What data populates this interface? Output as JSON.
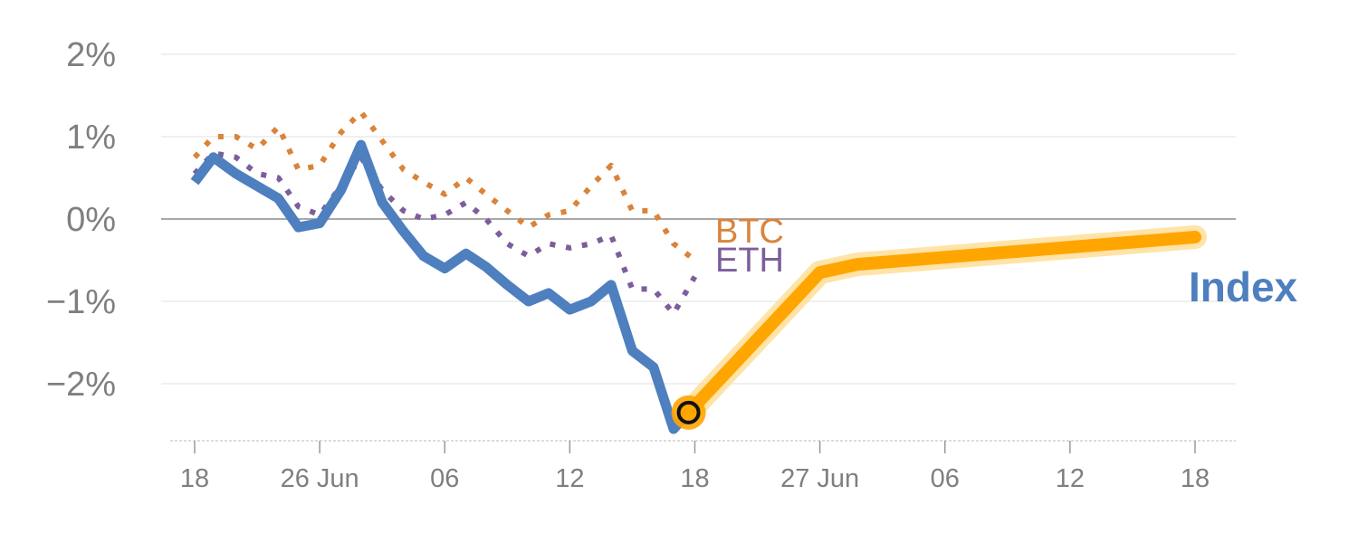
{
  "chart_data": {
    "type": "line",
    "title": "",
    "xlabel": "",
    "ylabel": "",
    "x_tick_labels": [
      "18",
      "26 Jun",
      "06",
      "12",
      "18",
      "27 Jun",
      "06",
      "12",
      "18"
    ],
    "y_tick_labels": [
      "2%",
      "1%",
      "0%",
      "−1%",
      "−2%"
    ],
    "y_ticks": [
      2,
      1,
      0,
      -1,
      -2
    ],
    "ylim": [
      -2.7,
      2.1
    ],
    "x_range": [
      -0.1,
      8.1
    ],
    "series": [
      {
        "name": "BTC",
        "color": "#d9843b",
        "style": "dotted",
        "x": [
          0,
          0.15,
          0.33,
          0.5,
          0.67,
          0.83,
          1.0,
          1.17,
          1.33,
          1.5,
          1.67,
          1.83,
          2.0,
          2.17,
          2.33,
          2.5,
          2.67,
          2.83,
          3.0,
          3.17,
          3.33,
          3.5,
          3.67,
          3.83,
          4.0
        ],
        "values": [
          0.75,
          1.0,
          1.0,
          0.85,
          1.12,
          0.6,
          0.65,
          1.05,
          1.3,
          0.95,
          0.6,
          0.45,
          0.3,
          0.5,
          0.3,
          0.1,
          -0.1,
          0.05,
          0.1,
          0.4,
          0.65,
          0.1,
          0.1,
          -0.3,
          -0.5
        ]
      },
      {
        "name": "ETH",
        "color": "#7c5e9c",
        "style": "dotted",
        "x": [
          0,
          0.15,
          0.33,
          0.5,
          0.67,
          0.83,
          1.0,
          1.17,
          1.33,
          1.5,
          1.67,
          1.83,
          2.0,
          2.17,
          2.33,
          2.5,
          2.67,
          2.83,
          3.0,
          3.17,
          3.33,
          3.5,
          3.67,
          3.83,
          4.0
        ],
        "values": [
          0.55,
          0.8,
          0.75,
          0.55,
          0.5,
          0.15,
          0.05,
          0.4,
          0.75,
          0.35,
          0.1,
          0.0,
          0.05,
          0.2,
          0.0,
          -0.3,
          -0.45,
          -0.3,
          -0.35,
          -0.3,
          -0.2,
          -0.85,
          -0.85,
          -1.15,
          -0.7
        ]
      },
      {
        "name": "Index",
        "color": "#4e7fbf",
        "style": "solid",
        "x": [
          0,
          0.15,
          0.33,
          0.5,
          0.67,
          0.83,
          1.0,
          1.17,
          1.33,
          1.5,
          1.67,
          1.83,
          2.0,
          2.17,
          2.33,
          2.5,
          2.67,
          2.83,
          3.0,
          3.17,
          3.33,
          3.5,
          3.67,
          3.83,
          3.95
        ],
        "values": [
          0.45,
          0.75,
          0.55,
          0.4,
          0.25,
          -0.1,
          -0.05,
          0.35,
          0.9,
          0.2,
          -0.15,
          -0.45,
          -0.6,
          -0.42,
          -0.58,
          -0.8,
          -1.0,
          -0.9,
          -1.1,
          -1.0,
          -0.8,
          -1.6,
          -1.8,
          -2.55,
          -2.35
        ]
      }
    ],
    "forecast": {
      "name": "Index",
      "color": "#ffa500",
      "x": [
        3.95,
        5.0,
        5.3,
        8.0
      ],
      "values": [
        -2.35,
        -0.65,
        -0.55,
        -0.22
      ]
    },
    "highlight_point": {
      "x": 3.95,
      "value": -2.35
    }
  }
}
